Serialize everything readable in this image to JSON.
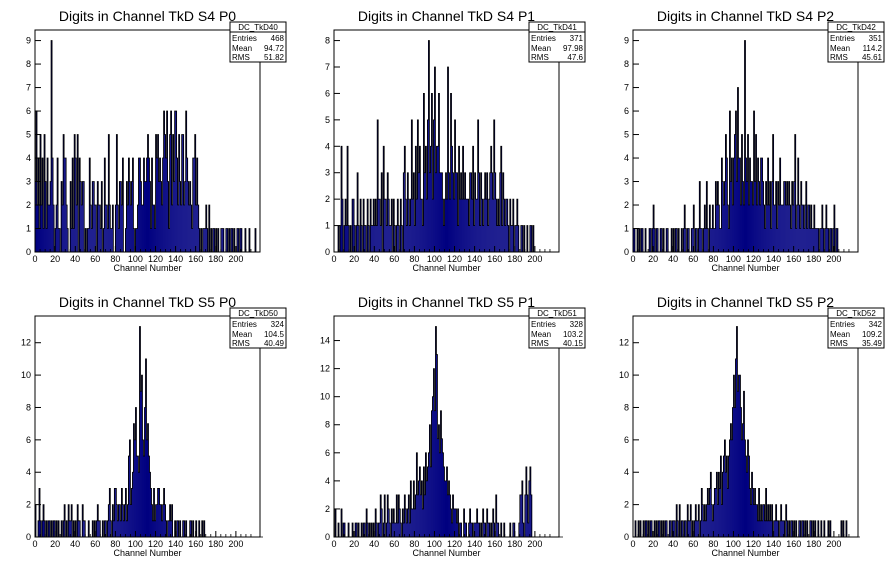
{
  "chart_data": [
    {
      "type": "histogram",
      "title": "Digits in Channel TkD S4 P0",
      "xlabel": "Channel Number",
      "ylabel": "",
      "xlim": [
        0,
        224
      ],
      "ylim": [
        0,
        9.45
      ],
      "xticks": [
        0,
        20,
        40,
        60,
        80,
        100,
        120,
        140,
        160,
        180,
        200
      ],
      "yticks": [
        0,
        1,
        2,
        3,
        4,
        5,
        6,
        7,
        8,
        9
      ],
      "stats": {
        "name": "DC_TkD40",
        "entries": "468",
        "mean": "94.72",
        "rms": "51.82"
      },
      "bin_width": 1,
      "values": [
        3,
        6,
        2,
        4,
        1,
        5,
        2,
        4,
        1,
        5,
        3,
        1,
        4,
        2,
        2,
        3,
        9,
        4,
        2,
        0,
        1,
        2,
        4,
        1,
        1,
        0,
        3,
        2,
        5,
        4,
        4,
        2,
        1,
        0,
        0,
        3,
        1,
        4,
        1,
        5,
        4,
        2,
        5,
        0,
        4,
        3,
        2,
        3,
        3,
        0,
        1,
        0,
        1,
        1,
        4,
        2,
        1,
        3,
        3,
        2,
        2,
        0,
        3,
        2,
        2,
        1,
        3,
        0,
        1,
        4,
        2,
        2,
        1,
        5,
        2,
        1,
        1,
        2,
        0,
        0,
        2,
        5,
        2,
        1,
        3,
        3,
        2,
        4,
        0,
        0,
        1,
        3,
        2,
        4,
        3,
        2,
        3,
        4,
        1,
        0,
        1,
        1,
        2,
        4,
        4,
        3,
        2,
        2,
        4,
        3,
        3,
        4,
        5,
        4,
        3,
        1,
        4,
        2,
        2,
        1,
        5,
        4,
        5,
        3,
        4,
        3,
        2,
        4,
        6,
        5,
        4,
        6,
        3,
        1,
        5,
        6,
        2,
        5,
        3,
        6,
        6,
        4,
        2,
        5,
        3,
        2,
        5,
        5,
        2,
        3,
        6,
        4,
        3,
        2,
        3,
        2,
        1,
        4,
        4,
        5,
        2,
        4,
        2,
        1,
        0,
        1,
        0,
        1,
        1,
        1,
        2,
        1,
        0,
        2,
        0,
        1,
        0,
        1,
        1,
        0,
        1,
        0,
        1,
        0,
        0,
        1,
        1,
        1,
        0,
        0,
        1,
        1,
        0,
        1,
        0,
        1,
        1,
        0,
        1,
        0,
        0,
        1,
        1,
        0,
        1,
        1,
        0,
        0,
        0,
        1,
        0,
        0,
        0,
        1,
        0,
        0,
        0,
        0,
        0,
        1,
        0,
        0
      ]
    },
    {
      "type": "histogram",
      "title": "Digits in Channel TkD S4 P1",
      "xlabel": "Channel Number",
      "ylabel": "",
      "xlim": [
        0,
        224
      ],
      "ylim": [
        0,
        8.4
      ],
      "xticks": [
        0,
        20,
        40,
        60,
        80,
        100,
        120,
        140,
        160,
        180,
        200
      ],
      "yticks": [
        0,
        1,
        2,
        3,
        4,
        5,
        6,
        7,
        8
      ],
      "stats": {
        "name": "DC_TkD41",
        "entries": "371",
        "mean": "97.98",
        "rms": "47.6"
      },
      "bin_width": 1,
      "values": [
        0,
        0,
        0,
        0,
        1,
        0,
        1,
        4,
        2,
        0,
        1,
        2,
        1,
        4,
        1,
        0,
        1,
        0,
        2,
        2,
        1,
        0,
        1,
        3,
        1,
        0,
        2,
        1,
        0,
        2,
        1,
        1,
        0,
        2,
        1,
        0,
        2,
        1,
        1,
        2,
        1,
        2,
        1,
        5,
        2,
        2,
        1,
        3,
        0,
        4,
        2,
        2,
        1,
        3,
        2,
        1,
        1,
        2,
        0,
        2,
        1,
        0,
        1,
        2,
        1,
        0,
        2,
        1,
        0,
        3,
        4,
        2,
        1,
        3,
        2,
        1,
        2,
        5,
        2,
        3,
        1,
        4,
        2,
        5,
        3,
        4,
        2,
        2,
        1,
        6,
        3,
        4,
        2,
        5,
        8,
        3,
        4,
        6,
        2,
        5,
        7,
        3,
        4,
        4,
        6,
        3,
        3,
        3,
        2,
        1,
        2,
        3,
        2,
        7,
        3,
        2,
        6,
        4,
        3,
        2,
        5,
        3,
        3,
        1,
        4,
        2,
        3,
        2,
        4,
        2,
        3,
        2,
        2,
        2,
        1,
        3,
        3,
        2,
        4,
        1,
        3,
        2,
        2,
        5,
        3,
        1,
        3,
        2,
        1,
        2,
        3,
        2,
        3,
        1,
        2,
        3,
        4,
        3,
        2,
        5,
        3,
        2,
        1,
        2,
        1,
        3,
        4,
        1,
        3,
        2,
        1,
        2,
        2,
        1,
        0,
        2,
        1,
        1,
        2,
        0,
        1,
        1,
        2,
        1,
        0,
        0,
        1,
        1,
        0,
        1,
        0,
        0,
        1,
        0,
        0,
        1,
        1,
        0,
        1,
        0,
        0,
        0,
        0,
        0,
        0,
        0,
        0,
        0,
        0,
        0,
        0,
        0,
        0,
        0,
        0,
        0,
        0,
        0,
        0,
        0,
        0,
        0
      ]
    },
    {
      "type": "histogram",
      "title": "Digits in Channel TkD S4 P2",
      "xlabel": "Channel Number",
      "ylabel": "",
      "xlim": [
        0,
        224
      ],
      "ylim": [
        0,
        9.45
      ],
      "xticks": [
        0,
        20,
        40,
        60,
        80,
        100,
        120,
        140,
        160,
        180,
        200
      ],
      "yticks": [
        0,
        1,
        2,
        3,
        4,
        5,
        6,
        7,
        8,
        9
      ],
      "stats": {
        "name": "DC_TkD42",
        "entries": "351",
        "mean": "114.2",
        "rms": "45.61"
      },
      "bin_width": 1,
      "values": [
        1,
        1,
        0,
        0,
        1,
        0,
        1,
        0,
        1,
        1,
        0,
        0,
        1,
        0,
        0,
        0,
        1,
        1,
        0,
        1,
        2,
        1,
        0,
        1,
        1,
        0,
        0,
        1,
        1,
        0,
        1,
        0,
        0,
        1,
        1,
        0,
        0,
        0,
        1,
        0,
        1,
        0,
        1,
        1,
        0,
        1,
        0,
        0,
        1,
        0,
        1,
        2,
        1,
        0,
        1,
        1,
        0,
        0,
        1,
        1,
        2,
        0,
        1,
        1,
        0,
        1,
        3,
        1,
        1,
        0,
        1,
        2,
        1,
        3,
        1,
        0,
        2,
        1,
        1,
        2,
        1,
        1,
        3,
        2,
        3,
        2,
        1,
        1,
        4,
        3,
        2,
        3,
        5,
        4,
        2,
        1,
        6,
        3,
        4,
        2,
        4,
        5,
        6,
        3,
        7,
        4,
        4,
        2,
        5,
        3,
        2,
        9,
        4,
        3,
        5,
        2,
        4,
        3,
        3,
        2,
        6,
        3,
        5,
        2,
        4,
        3,
        2,
        4,
        4,
        3,
        2,
        1,
        3,
        2,
        4,
        2,
        3,
        1,
        3,
        5,
        2,
        2,
        3,
        1,
        3,
        2,
        4,
        2,
        2,
        2,
        3,
        3,
        2,
        3,
        2,
        3,
        2,
        1,
        3,
        2,
        3,
        5,
        1,
        2,
        4,
        2,
        1,
        3,
        2,
        2,
        1,
        2,
        3,
        1,
        2,
        2,
        1,
        2,
        1,
        1,
        2,
        1,
        1,
        1,
        1,
        0,
        1,
        1,
        2,
        1,
        0,
        1,
        2,
        1,
        1,
        0,
        1,
        1,
        0,
        1,
        2,
        0,
        1,
        1,
        0,
        0,
        0,
        0,
        0,
        0,
        0,
        0,
        0,
        0,
        0,
        0,
        0,
        0,
        0,
        0,
        0,
        0,
        0,
        0
      ]
    },
    {
      "type": "histogram",
      "title": "Digits in Channel TkD S5 P0",
      "xlabel": "Channel Number",
      "ylabel": "",
      "xlim": [
        0,
        224
      ],
      "ylim": [
        0,
        13.65
      ],
      "xticks": [
        0,
        20,
        40,
        60,
        80,
        100,
        120,
        140,
        160,
        180,
        200
      ],
      "yticks": [
        0,
        2,
        4,
        6,
        8,
        10,
        12
      ],
      "stats": {
        "name": "DC_TkD50",
        "entries": "324",
        "mean": "104.5",
        "rms": "40.49"
      },
      "bin_width": 1,
      "values": [
        2,
        0,
        0,
        1,
        3,
        1,
        0,
        1,
        2,
        1,
        0,
        1,
        0,
        1,
        1,
        0,
        1,
        0,
        1,
        1,
        0,
        1,
        0,
        1,
        0,
        0,
        1,
        0,
        1,
        2,
        0,
        1,
        0,
        2,
        1,
        1,
        2,
        0,
        1,
        0,
        1,
        0,
        2,
        1,
        1,
        0,
        0,
        2,
        1,
        1,
        0,
        0,
        0,
        1,
        0,
        0,
        0,
        1,
        0,
        1,
        0,
        1,
        2,
        1,
        1,
        0,
        0,
        1,
        0,
        1,
        1,
        0,
        1,
        2,
        3,
        1,
        0,
        2,
        1,
        3,
        3,
        2,
        1,
        2,
        2,
        1,
        3,
        2,
        1,
        2,
        3,
        1,
        2,
        5,
        6,
        2,
        3,
        4,
        7,
        6,
        8,
        5,
        5,
        4,
        13,
        9,
        10,
        6,
        5,
        8,
        11,
        6,
        7,
        5,
        4,
        3,
        2,
        1,
        3,
        1,
        2,
        2,
        3,
        3,
        2,
        2,
        1,
        2,
        3,
        2,
        1,
        0,
        1,
        1,
        2,
        1,
        2,
        0,
        0,
        1,
        0,
        1,
        1,
        0,
        1,
        0,
        0,
        1,
        1,
        0,
        1,
        0,
        0,
        0,
        1,
        1,
        0,
        1,
        0,
        0,
        1,
        0,
        0,
        1,
        0,
        0,
        1,
        0,
        1,
        0,
        0,
        0,
        0,
        0,
        0,
        0,
        0,
        0,
        0,
        0,
        0,
        0,
        0,
        0,
        0,
        0,
        0,
        0,
        0,
        0,
        0,
        0,
        0,
        0,
        0,
        0,
        0,
        0,
        0,
        0,
        0,
        0,
        0,
        0,
        0,
        0,
        0,
        0,
        0,
        0,
        0,
        0,
        0,
        0,
        0,
        0,
        0,
        0,
        0,
        0,
        0,
        0,
        0,
        0,
        0,
        0,
        0
      ]
    },
    {
      "type": "histogram",
      "title": "Digits in Channel TkD S5 P1",
      "xlabel": "Channel Number",
      "ylabel": "",
      "xlim": [
        0,
        224
      ],
      "ylim": [
        0,
        15.75
      ],
      "xticks": [
        0,
        20,
        40,
        60,
        80,
        100,
        120,
        140,
        160,
        180,
        200
      ],
      "yticks": [
        0,
        2,
        4,
        6,
        8,
        10,
        12,
        14
      ],
      "stats": {
        "name": "DC_TkD51",
        "entries": "328",
        "mean": "103.2",
        "rms": "40.15"
      },
      "bin_width": 1,
      "values": [
        0,
        2,
        0,
        0,
        1,
        0,
        0,
        2,
        0,
        1,
        1,
        0,
        0,
        0,
        1,
        0,
        0,
        0,
        1,
        0,
        0,
        1,
        1,
        0,
        1,
        0,
        0,
        1,
        0,
        1,
        1,
        0,
        2,
        1,
        0,
        1,
        0,
        1,
        0,
        1,
        0,
        2,
        1,
        0,
        1,
        1,
        3,
        2,
        0,
        1,
        3,
        0,
        1,
        3,
        2,
        1,
        0,
        2,
        1,
        2,
        1,
        1,
        3,
        1,
        3,
        2,
        1,
        0,
        2,
        1,
        3,
        2,
        1,
        2,
        3,
        1,
        4,
        2,
        2,
        4,
        2,
        3,
        6,
        3,
        4,
        5,
        3,
        4,
        2,
        5,
        3,
        6,
        4,
        5,
        6,
        8,
        5,
        9,
        10,
        12,
        9,
        15,
        13,
        7,
        8,
        6,
        9,
        7,
        6,
        5,
        4,
        4,
        5,
        3,
        4,
        3,
        2,
        1,
        3,
        2,
        2,
        2,
        1,
        2,
        0,
        1,
        1,
        0,
        0,
        2,
        1,
        1,
        0,
        0,
        1,
        2,
        1,
        1,
        0,
        1,
        1,
        1,
        2,
        1,
        1,
        0,
        1,
        0,
        2,
        1,
        1,
        0,
        2,
        1,
        1,
        0,
        1,
        0,
        2,
        1,
        0,
        3,
        1,
        1,
        0,
        0,
        1,
        0,
        0,
        1,
        0,
        0,
        0,
        0,
        0,
        1,
        0,
        0,
        1,
        1,
        0,
        0,
        0,
        0,
        1,
        3,
        3,
        4,
        1,
        0,
        3,
        5,
        3,
        1,
        4,
        5,
        3,
        0,
        0,
        0,
        0,
        0,
        0,
        0,
        0,
        0,
        0,
        0,
        0,
        0,
        0,
        0,
        0,
        0,
        0,
        0,
        0,
        0,
        0,
        0,
        0,
        0,
        0,
        0,
        0,
        0,
        0,
        0
      ]
    },
    {
      "type": "histogram",
      "title": "Digits in Channel TkD S5 P2",
      "xlabel": "Channel Number",
      "ylabel": "",
      "xlim": [
        0,
        224
      ],
      "ylim": [
        0,
        13.65
      ],
      "xticks": [
        0,
        20,
        40,
        60,
        80,
        100,
        120,
        140,
        160,
        180,
        200
      ],
      "yticks": [
        0,
        2,
        4,
        6,
        8,
        10,
        12
      ],
      "stats": {
        "name": "DC_TkD52",
        "entries": "342",
        "mean": "109.2",
        "rms": "35.49"
      },
      "bin_width": 1,
      "values": [
        0,
        0,
        1,
        0,
        0,
        1,
        0,
        1,
        0,
        0,
        1,
        0,
        1,
        1,
        0,
        1,
        0,
        1,
        1,
        0,
        0,
        1,
        0,
        1,
        0,
        1,
        1,
        0,
        1,
        0,
        1,
        0,
        1,
        1,
        0,
        0,
        1,
        1,
        0,
        1,
        1,
        1,
        0,
        2,
        1,
        0,
        2,
        0,
        1,
        1,
        0,
        1,
        1,
        0,
        2,
        1,
        1,
        2,
        0,
        1,
        0,
        1,
        2,
        1,
        1,
        2,
        0,
        1,
        3,
        2,
        1,
        2,
        1,
        2,
        3,
        2,
        3,
        4,
        2,
        1,
        2,
        3,
        3,
        4,
        2,
        4,
        3,
        5,
        2,
        4,
        5,
        6,
        4,
        5,
        3,
        5,
        6,
        7,
        6,
        8,
        10,
        8,
        11,
        13,
        9,
        10,
        10,
        8,
        6,
        7,
        9,
        6,
        5,
        4,
        6,
        5,
        3,
        2,
        4,
        3,
        2,
        3,
        2,
        2,
        1,
        3,
        1,
        2,
        1,
        2,
        2,
        1,
        3,
        1,
        2,
        1,
        2,
        1,
        2,
        0,
        1,
        1,
        2,
        1,
        1,
        0,
        1,
        2,
        1,
        1,
        1,
        0,
        2,
        1,
        0,
        1,
        0,
        1,
        1,
        0,
        1,
        0,
        1,
        0,
        0,
        1,
        1,
        0,
        1,
        1,
        0,
        1,
        0,
        1,
        0,
        0,
        1,
        1,
        0,
        1,
        0,
        1,
        0,
        0,
        1,
        0,
        0,
        1,
        0,
        0,
        1,
        0,
        0,
        0,
        1,
        0,
        1,
        0,
        0,
        0,
        0,
        0,
        0,
        0,
        0,
        0,
        0,
        1,
        0,
        1,
        0,
        0,
        1,
        0,
        0,
        0,
        0,
        0,
        0,
        0,
        0,
        0,
        0,
        0,
        0,
        0
      ]
    }
  ],
  "colors": {
    "bar_fill": "#000080",
    "bar_outline": "#000000",
    "stats_bg": "#ffffff"
  },
  "stat_labels": {
    "entries": "Entries",
    "mean": "Mean",
    "rms": "RMS"
  }
}
